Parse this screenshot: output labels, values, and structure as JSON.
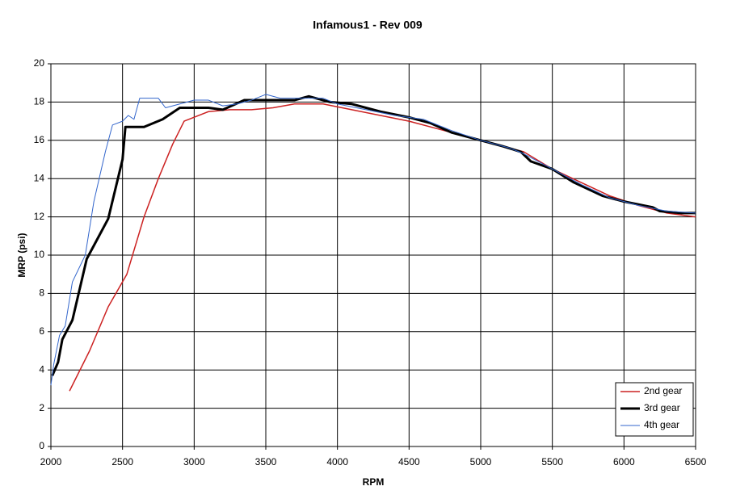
{
  "chart_data": {
    "type": "line",
    "title": "Infamous1 - Rev 009",
    "x_label": "RPM",
    "y_label": "MRP (psi)",
    "xlim": [
      2000,
      6500
    ],
    "xticks": [
      2000,
      2500,
      3000,
      3500,
      4000,
      4500,
      5000,
      5500,
      6000,
      6500
    ],
    "ylim": [
      0,
      20
    ],
    "yticks": [
      0,
      2,
      4,
      6,
      8,
      10,
      12,
      14,
      16,
      18,
      20
    ],
    "grid": true,
    "legend": "lower right",
    "series": [
      {
        "name": "2nd gear",
        "color": "#cc2222",
        "width": 1.5,
        "x": [
          2130,
          2270,
          2400,
          2530,
          2650,
          2750,
          2850,
          2930,
          3100,
          3250,
          3400,
          3550,
          3700,
          3900,
          4100,
          4300,
          4500,
          4700,
          4900,
          5100,
          5300,
          5500,
          5700,
          5900,
          6100,
          6300,
          6500
        ],
        "values": [
          2.9,
          5,
          7.3,
          9,
          12,
          14,
          15.8,
          17,
          17.5,
          17.6,
          17.6,
          17.7,
          17.9,
          17.9,
          17.6,
          17.3,
          17,
          16.6,
          16.2,
          15.8,
          15.4,
          14.5,
          13.8,
          13.1,
          12.6,
          12.2,
          12
        ]
      },
      {
        "name": "3rd gear",
        "color": "#000000",
        "width": 3,
        "x": [
          2010,
          2050,
          2080,
          2150,
          2250,
          2400,
          2500,
          2520,
          2650,
          2780,
          2900,
          3100,
          3200,
          3350,
          3500,
          3700,
          3800,
          3950,
          4100,
          4300,
          4500,
          4650,
          4800,
          5000,
          5150,
          5280,
          5350,
          5500,
          5650,
          5850,
          6000,
          6200,
          6250,
          6400,
          6500
        ],
        "values": [
          3.7,
          4.4,
          5.6,
          6.6,
          9.8,
          11.9,
          15,
          16.7,
          16.7,
          17.1,
          17.7,
          17.7,
          17.6,
          18.1,
          18.1,
          18.1,
          18.3,
          18,
          17.9,
          17.5,
          17.2,
          16.9,
          16.4,
          16,
          15.7,
          15.4,
          14.9,
          14.5,
          13.8,
          13.1,
          12.8,
          12.5,
          12.3,
          12.2,
          12.2
        ]
      },
      {
        "name": "4th gear",
        "color": "#3366cc",
        "width": 1,
        "x": [
          2000,
          2020,
          2060,
          2100,
          2150,
          2240,
          2300,
          2380,
          2430,
          2500,
          2540,
          2580,
          2620,
          2750,
          2800,
          2900,
          2950,
          3000,
          3100,
          3200,
          3300,
          3400,
          3500,
          3600,
          3700,
          3900,
          4000,
          4200,
          4400,
          4600,
          4800,
          5000,
          5200,
          5300,
          5500,
          5700,
          5900,
          6100,
          6300,
          6500
        ],
        "values": [
          3.2,
          4.3,
          5.8,
          6.3,
          8.6,
          10,
          12.8,
          15.4,
          16.8,
          17,
          17.3,
          17.1,
          18.2,
          18.2,
          17.7,
          17.9,
          18,
          18.1,
          18.1,
          17.8,
          17.9,
          18.1,
          18.4,
          18.2,
          18.2,
          18.2,
          17.9,
          17.6,
          17.3,
          17.1,
          16.5,
          16,
          15.6,
          15.3,
          14.5,
          13.7,
          13,
          12.6,
          12.3,
          12.2
        ]
      }
    ]
  }
}
